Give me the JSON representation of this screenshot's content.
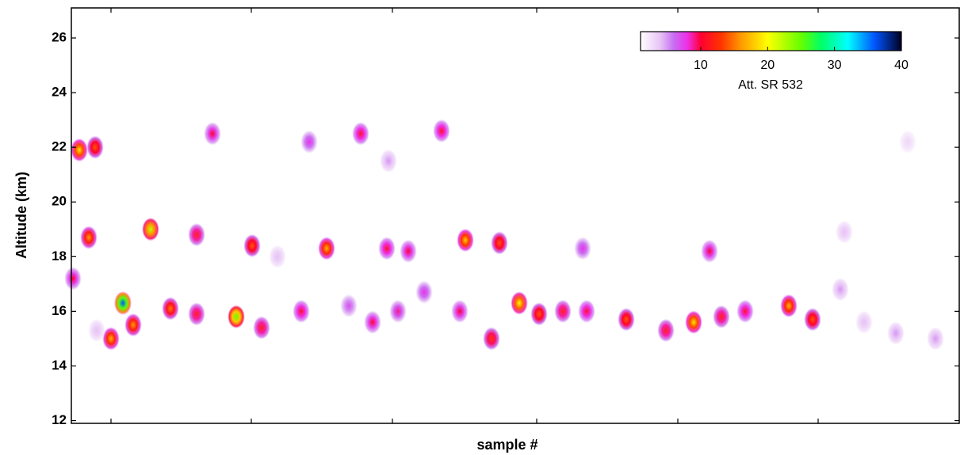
{
  "chart_data": {
    "type": "heatmap",
    "xlabel": "sample #",
    "ylabel": "Altitude (km)",
    "xlim": [
      0,
      112
    ],
    "ylim": [
      11.9,
      27.1
    ],
    "xticks": [
      5,
      22.7,
      40.5,
      58.7,
      76.5,
      94.2
    ],
    "xtick_labels": false,
    "yticks": [
      12,
      14,
      16,
      18,
      20,
      22,
      24,
      26
    ],
    "clim": [
      1,
      40
    ],
    "cbar_ticks": [
      10,
      20,
      30,
      40
    ],
    "cbar_label": "Att. SR 532",
    "colormap": [
      [
        1,
        "#ffffff"
      ],
      [
        4,
        "#e6c2f5"
      ],
      [
        6,
        "#c86cf2"
      ],
      [
        8,
        "#ee30e8"
      ],
      [
        10,
        "#ff0033"
      ],
      [
        13,
        "#ff3300"
      ],
      [
        16,
        "#ff9900"
      ],
      [
        20,
        "#ffff00"
      ],
      [
        25,
        "#66ff00"
      ],
      [
        28,
        "#00ff66"
      ],
      [
        32,
        "#00ffff"
      ],
      [
        36,
        "#0055ff"
      ],
      [
        40,
        "#000022"
      ]
    ],
    "blobs": {
      "x": [
        0.2,
        1.0,
        3.0,
        2.2,
        10.0,
        15.8,
        17.8,
        22.8,
        26.0,
        30.0,
        32.2,
        36.5,
        39.8,
        42.5,
        46.7,
        49.7,
        54.0,
        6.5,
        5.0,
        7.8,
        12.5,
        15.8,
        20.8,
        24.0,
        29.0,
        38.0,
        41.2,
        49.0,
        53.0,
        56.5,
        59.0,
        62.0,
        65.0,
        70.0,
        75.0,
        78.5,
        82.0,
        85.0,
        90.5,
        93.5,
        97.0,
        100.0,
        104.0,
        109.0,
        105.5,
        97.5,
        80.5,
        64.5,
        35.0,
        44.5,
        3.2,
        40.0
      ],
      "y": [
        17.2,
        21.9,
        22.0,
        18.7,
        19.0,
        18.8,
        22.5,
        18.4,
        18.0,
        22.2,
        18.3,
        22.5,
        18.3,
        18.2,
        22.6,
        18.6,
        18.5,
        16.3,
        15.0,
        15.5,
        16.1,
        15.9,
        15.8,
        15.4,
        16.0,
        15.6,
        16.0,
        16.0,
        15.0,
        16.3,
        15.9,
        16.0,
        16.0,
        15.7,
        15.3,
        15.6,
        15.8,
        16.0,
        16.2,
        15.7,
        16.8,
        15.6,
        15.2,
        15.0,
        22.2,
        18.9,
        18.2,
        18.3,
        16.2,
        16.7,
        15.3,
        21.5
      ],
      "values": [
        10,
        19,
        14,
        16,
        22,
        12,
        10,
        14,
        4,
        8,
        17,
        11,
        11,
        10,
        11,
        18,
        14,
        36,
        17,
        16,
        15,
        12,
        25,
        12,
        11,
        10,
        9,
        10,
        13,
        20,
        14,
        12,
        11,
        14,
        12,
        19,
        12,
        11,
        17,
        14,
        5,
        4,
        5,
        5,
        3,
        4,
        10,
        8,
        7,
        8,
        4,
        5
      ]
    }
  }
}
